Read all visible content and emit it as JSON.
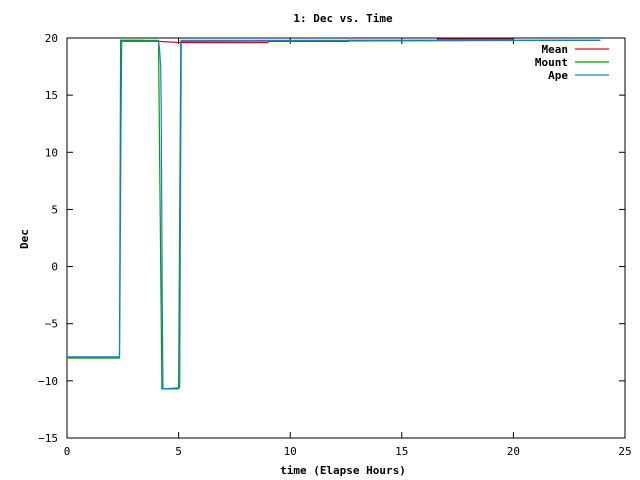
{
  "chart_data": {
    "type": "line",
    "title": "1: Dec vs. Time",
    "xlabel": "time (Elapse Hours)",
    "ylabel": "Dec",
    "xlim": [
      0,
      25
    ],
    "ylim": [
      -15,
      20
    ],
    "xticks": [
      0,
      5,
      10,
      15,
      20,
      25
    ],
    "yticks": [
      -15,
      -10,
      -5,
      0,
      5,
      10,
      15,
      20
    ],
    "grid": false,
    "legend_position": "top-right",
    "series": [
      {
        "name": "Mean",
        "color": "#c8102e",
        "points": [
          [
            2.4,
            19.8
          ],
          [
            3.4,
            19.8
          ],
          [
            3.4,
            19.7
          ],
          [
            4.1,
            19.7
          ],
          [
            5.1,
            19.6
          ],
          [
            9.0,
            19.6
          ],
          [
            9.0,
            19.7
          ],
          [
            12.6,
            19.7
          ],
          [
            12.6,
            19.8
          ],
          [
            16.6,
            19.8
          ],
          [
            16.6,
            19.9
          ],
          [
            20.0,
            19.9
          ],
          [
            20.0,
            19.8
          ],
          [
            23.9,
            19.8
          ]
        ]
      },
      {
        "name": "Mount",
        "color": "#00a000",
        "points": [
          [
            0,
            -8.0
          ],
          [
            2.35,
            -8.0
          ],
          [
            2.4,
            19.8
          ],
          [
            4.1,
            19.8
          ],
          [
            4.25,
            -10.7
          ],
          [
            5.0,
            -10.7
          ],
          [
            5.1,
            19.7
          ],
          [
            23.9,
            19.8
          ]
        ]
      },
      {
        "name": "Ape",
        "color": "#1f77d0",
        "points": [
          [
            0,
            -7.9
          ],
          [
            2.35,
            -7.9
          ],
          [
            2.38,
            -1.0
          ],
          [
            2.42,
            12.6
          ],
          [
            2.45,
            19.7
          ],
          [
            4.1,
            19.7
          ],
          [
            4.15,
            19.0
          ],
          [
            4.2,
            17.5
          ],
          [
            4.22,
            14.0
          ],
          [
            4.27,
            -3.8
          ],
          [
            4.3,
            -10.7
          ],
          [
            5.05,
            -10.6
          ],
          [
            5.08,
            4.6
          ],
          [
            5.12,
            19.8
          ],
          [
            23.9,
            19.8
          ]
        ]
      }
    ]
  }
}
